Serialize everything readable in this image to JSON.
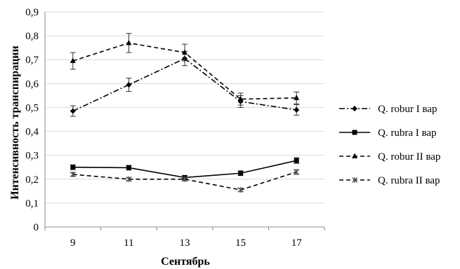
{
  "chart_data": {
    "type": "line",
    "title": "",
    "xlabel": "Сентябрь",
    "ylabel": "Интенсивность транспирации",
    "categories": [
      "9",
      "11",
      "13",
      "15",
      "17"
    ],
    "y_ticks": [
      "0",
      "0,1",
      "0,2",
      "0,3",
      "0,4",
      "0,5",
      "0,6",
      "0,7",
      "0,8",
      "0,9"
    ],
    "ylim": [
      0,
      0.9
    ],
    "grid": "horizontal",
    "legend_position": "right",
    "series": [
      {
        "name": "Q. robur I вар",
        "values": [
          0.485,
          0.595,
          0.705,
          0.525,
          0.49
        ],
        "errors": [
          0.022,
          0.028,
          0.03,
          0.025,
          0.022
        ],
        "line_style": "dash-dot",
        "marker": "diamond",
        "color": "#000000"
      },
      {
        "name": "Q. rubra I вар",
        "values": [
          0.25,
          0.248,
          0.207,
          0.225,
          0.278
        ],
        "errors": [
          0.01,
          0.01,
          0.008,
          0.01,
          0.012
        ],
        "line_style": "solid",
        "marker": "square",
        "color": "#000000"
      },
      {
        "name": "Q. robur II вар",
        "values": [
          0.695,
          0.77,
          0.73,
          0.535,
          0.54
        ],
        "errors": [
          0.035,
          0.04,
          0.035,
          0.025,
          0.025
        ],
        "line_style": "dashed",
        "marker": "triangle",
        "color": "#000000"
      },
      {
        "name": "Q. rubra II вар",
        "values": [
          0.22,
          0.2,
          0.2,
          0.155,
          0.23
        ],
        "errors": [
          0.008,
          0.007,
          0.007,
          0.006,
          0.01
        ],
        "line_style": "dashed",
        "marker": "x",
        "color": "#000000"
      }
    ]
  }
}
